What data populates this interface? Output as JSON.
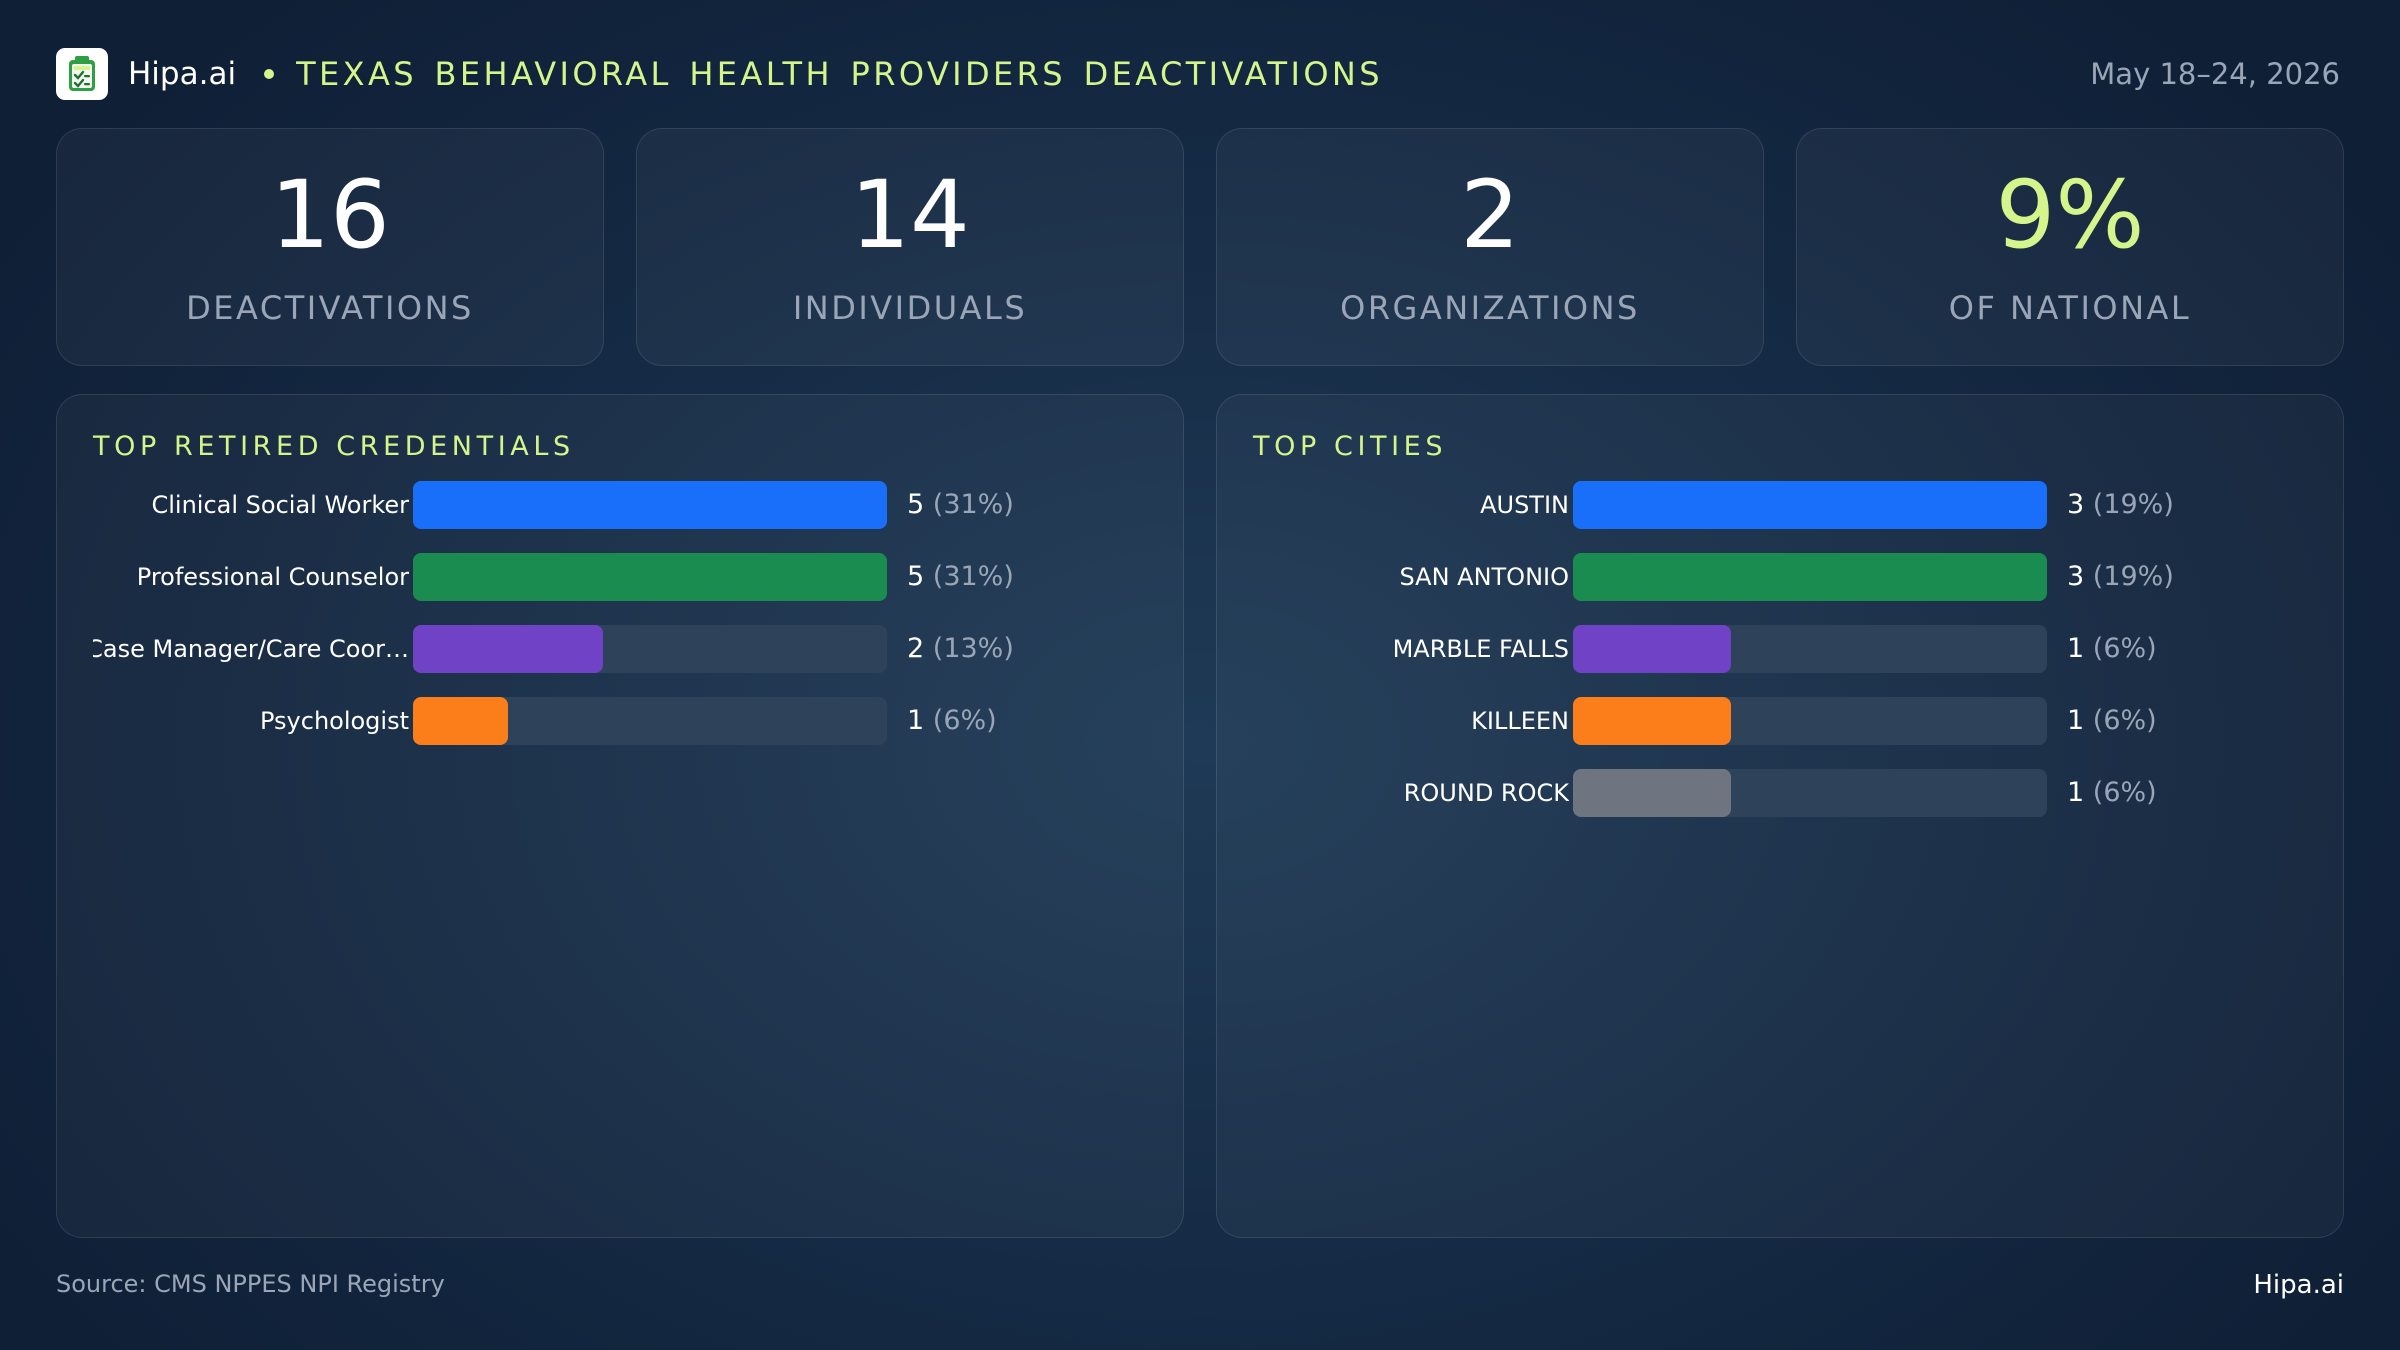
{
  "header": {
    "brand": "Hipa.ai",
    "title": "TEXAS BEHAVIORAL HEALTH PROVIDERS DEACTIVATIONS",
    "date": "May 18–24, 2026",
    "logo_icon": "checklist-clipboard-icon"
  },
  "kpis": [
    {
      "value": "16",
      "label": "DEACTIVATIONS"
    },
    {
      "value": "14",
      "label": "INDIVIDUALS"
    },
    {
      "value": "2",
      "label": "ORGANIZATIONS"
    },
    {
      "value": "9%",
      "label": "OF NATIONAL"
    }
  ],
  "colors": {
    "accent": "#d4f58b",
    "blue": "#1a6ffa",
    "green": "#1a8c50",
    "purple": "#7043c6",
    "orange": "#fb7e1a",
    "gray": "#6e7580",
    "track": "#2e425a"
  },
  "chart_data": [
    {
      "type": "bar",
      "orientation": "horizontal",
      "title": "TOP RETIRED CREDENTIALS",
      "categories": [
        "Clinical Social Worker",
        "Professional Counselor",
        "Case Manager/Care Coor…",
        "Psychologist"
      ],
      "values": [
        5,
        5,
        2,
        1
      ],
      "value_labels": [
        "5",
        "5",
        "2",
        "1"
      ],
      "percent_labels": [
        "(31%)",
        "(31%)",
        "(13%)",
        "(6%)"
      ],
      "colors": [
        "#1a6ffa",
        "#1a8c50",
        "#7043c6",
        "#fb7e1a"
      ],
      "xlim": [
        0,
        5
      ]
    },
    {
      "type": "bar",
      "orientation": "horizontal",
      "title": "TOP CITIES",
      "categories": [
        "AUSTIN",
        "SAN ANTONIO",
        "MARBLE FALLS",
        "KILLEEN",
        "ROUND ROCK"
      ],
      "values": [
        3,
        3,
        1,
        1,
        1
      ],
      "value_labels": [
        "3",
        "3",
        "1",
        "1",
        "1"
      ],
      "percent_labels": [
        "(19%)",
        "(19%)",
        "(6%)",
        "(6%)",
        "(6%)"
      ],
      "colors": [
        "#1a6ffa",
        "#1a8c50",
        "#7043c6",
        "#fb7e1a",
        "#6e7580"
      ],
      "xlim": [
        0,
        3
      ]
    }
  ],
  "footer": {
    "source": "Source: CMS NPPES NPI Registry",
    "brand": "Hipa.ai"
  }
}
